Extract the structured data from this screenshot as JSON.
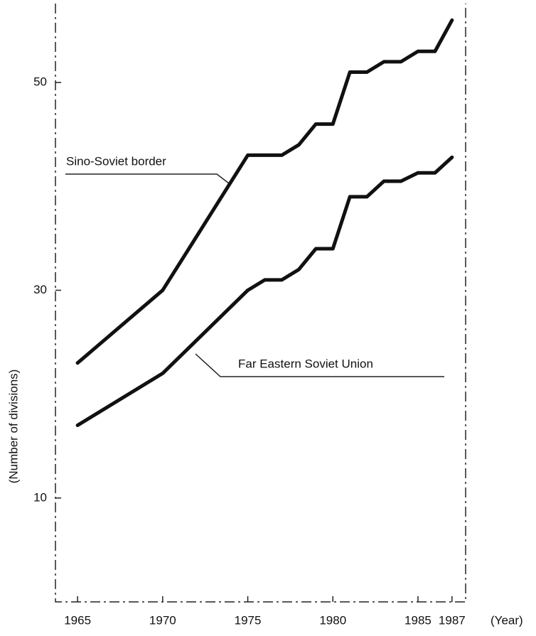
{
  "chart_data": {
    "type": "line",
    "y_label": "(Number of divisions)",
    "x_label": "(Year)",
    "x": [
      1965,
      1970,
      1975,
      1976,
      1977,
      1978,
      1979,
      1980,
      1981,
      1982,
      1983,
      1984,
      1985,
      1986,
      1987
    ],
    "series": [
      {
        "name": "Sino-Soviet border",
        "color": "#111111",
        "values": [
          23,
          30,
          43,
          43,
          43,
          44,
          46,
          46,
          51,
          51,
          52,
          52,
          53,
          53,
          56
        ]
      },
      {
        "name": "Far Eastern Soviet Union",
        "color": "#111111",
        "values": [
          17,
          22,
          30,
          31,
          31,
          32,
          34,
          34,
          39,
          39,
          40.5,
          40.5,
          41.3,
          41.3,
          42.8
        ]
      }
    ],
    "xlim": [
      1963.7,
      1987.8
    ],
    "xticks": [
      1965,
      1970,
      1975,
      1980,
      1985,
      1987
    ],
    "ylim": [
      0,
      57.6
    ],
    "yticks": [
      10,
      30,
      50
    ],
    "grid": false
  }
}
